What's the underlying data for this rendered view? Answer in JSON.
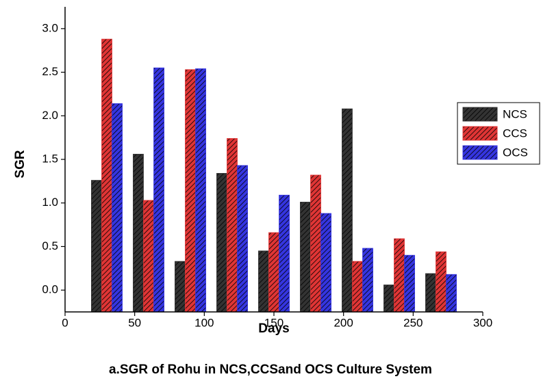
{
  "chart_data": {
    "type": "bar",
    "title": "a.SGR of Rohu in NCS,CCSand OCS Culture System",
    "xlabel": "Days",
    "ylabel": "SGR",
    "x": [
      30,
      60,
      90,
      120,
      150,
      180,
      210,
      240,
      270
    ],
    "series": [
      {
        "name": "NCS",
        "color": "#333333",
        "values": [
          1.26,
          1.56,
          0.33,
          1.34,
          0.45,
          1.01,
          2.08,
          0.06,
          0.19
        ]
      },
      {
        "name": "CCS",
        "color": "#e03535",
        "values": [
          2.88,
          1.03,
          2.53,
          1.74,
          0.66,
          1.32,
          0.33,
          0.59,
          0.44
        ]
      },
      {
        "name": "OCS",
        "color": "#3535e0",
        "values": [
          2.14,
          2.55,
          2.54,
          1.43,
          1.09,
          0.88,
          0.48,
          0.4,
          0.18
        ]
      }
    ],
    "xlim": [
      0,
      300
    ],
    "xticks": [
      0,
      50,
      100,
      150,
      200,
      250,
      300
    ],
    "ylim": [
      -0.25,
      3.25
    ],
    "yticks": [
      {
        "value": 0,
        "label": "0.0"
      },
      {
        "value": 0.5,
        "label": "0.5"
      },
      {
        "value": 1,
        "label": "1.0"
      },
      {
        "value": 1.5,
        "label": "1.5"
      },
      {
        "value": 2,
        "label": "2.0"
      },
      {
        "value": 2.5,
        "label": "2.5"
      },
      {
        "value": 3,
        "label": "3.0"
      }
    ],
    "legend": "right"
  }
}
